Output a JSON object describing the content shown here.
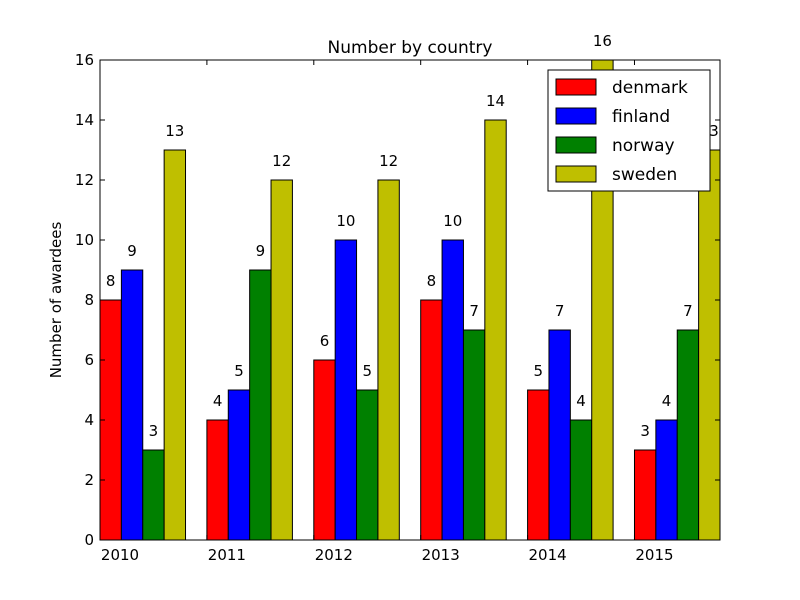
{
  "chart_data": {
    "type": "bar",
    "title": "Number by country",
    "xlabel": "",
    "ylabel": "Number of awardees",
    "categories": [
      "2010",
      "2011",
      "2012",
      "2013",
      "2014",
      "2015"
    ],
    "ylim": [
      0,
      16
    ],
    "yticks": [
      "0",
      "2",
      "4",
      "6",
      "8",
      "10",
      "12",
      "14",
      "16"
    ],
    "grid": false,
    "legend_position": "top-right",
    "series": [
      {
        "name": "denmark",
        "color": "#ff0000",
        "values": [
          8,
          4,
          6,
          8,
          5,
          3
        ]
      },
      {
        "name": "finland",
        "color": "#0000ff",
        "values": [
          9,
          5,
          10,
          10,
          7,
          4
        ]
      },
      {
        "name": "norway",
        "color": "#008000",
        "values": [
          3,
          9,
          5,
          7,
          4,
          7
        ]
      },
      {
        "name": "sweden",
        "color": "#bfbf00",
        "values": [
          13,
          12,
          12,
          14,
          16,
          13
        ]
      }
    ]
  }
}
